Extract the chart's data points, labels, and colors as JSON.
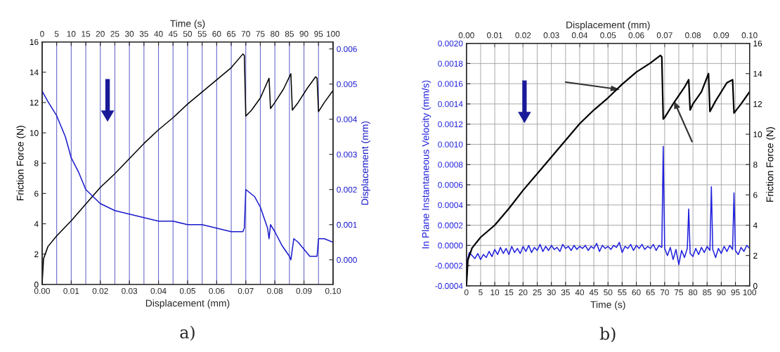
{
  "chart_data": [
    {
      "type": "line",
      "xlabel": "Displacement (mm)",
      "ylabel": "Friction Force (N)",
      "y2label": "Displacement (mm)",
      "x2label": "Time (s)",
      "xlim": [
        0,
        0.1
      ],
      "xticks": [
        {
          "value": 0,
          "label": "0.00"
        },
        {
          "value": 0.01,
          "label": "0.01"
        },
        {
          "value": 0.02,
          "label": "0.02"
        },
        {
          "value": 0.03,
          "label": "0.03"
        },
        {
          "value": 0.04,
          "label": "0.04"
        },
        {
          "value": 0.05,
          "label": "0.05"
        },
        {
          "value": 0.06,
          "label": "0.06"
        },
        {
          "value": 0.07,
          "label": "0.07"
        },
        {
          "value": 0.08,
          "label": "0.08"
        },
        {
          "value": 0.09,
          "label": "0.09"
        },
        {
          "value": 0.1,
          "label": "0.10"
        }
      ],
      "ylim": [
        0,
        16
      ],
      "yticks": [
        0,
        2,
        4,
        6,
        8,
        10,
        12,
        14,
        16
      ],
      "y2lim": [
        -0.0007,
        0.0062
      ],
      "y2ticks": [
        {
          "value": 0,
          "label": "0.000"
        },
        {
          "value": 0.001,
          "label": "0.001"
        },
        {
          "value": 0.002,
          "label": "0.002"
        },
        {
          "value": 0.003,
          "label": "0.003"
        },
        {
          "value": 0.004,
          "label": "0.004"
        },
        {
          "value": 0.005,
          "label": "0.005"
        },
        {
          "value": 0.006,
          "label": "0.006"
        }
      ],
      "x2lim": [
        0,
        100
      ],
      "x2ticks": [
        0,
        5,
        10,
        15,
        20,
        25,
        30,
        35,
        40,
        45,
        50,
        55,
        60,
        65,
        70,
        75,
        80,
        85,
        90,
        95,
        100
      ],
      "grid": "x",
      "annotations": [
        "a)"
      ],
      "series": [
        {
          "color": "#000000",
          "x": [
            0,
            0.0005,
            0.002,
            0.005,
            0.01,
            0.015,
            0.02,
            0.025,
            0.03,
            0.035,
            0.04,
            0.045,
            0.05,
            0.055,
            0.06,
            0.065,
            0.069,
            0.0695,
            0.07,
            0.072,
            0.075,
            0.078,
            0.0785,
            0.08,
            0.083,
            0.0855,
            0.086,
            0.088,
            0.091,
            0.094,
            0.0945,
            0.095,
            0.097,
            0.1
          ],
          "values": [
            0,
            1.7,
            2.5,
            3.2,
            4.2,
            5.3,
            6.4,
            7.3,
            8.3,
            9.3,
            10.2,
            11.0,
            11.9,
            12.7,
            13.5,
            14.3,
            15.2,
            15.1,
            11.1,
            11.5,
            12.3,
            13.6,
            11.6,
            12.0,
            12.9,
            13.9,
            11.5,
            12.0,
            12.9,
            13.7,
            13.6,
            11.4,
            12.0,
            12.8
          ]
        },
        {
          "color": "#1a1acc",
          "axis": "y2",
          "x": [
            0,
            0.002,
            0.005,
            0.008,
            0.01,
            0.0125,
            0.015,
            0.0175,
            0.02,
            0.025,
            0.03,
            0.035,
            0.04,
            0.045,
            0.05,
            0.055,
            0.06,
            0.065,
            0.069,
            0.0695,
            0.07,
            0.0715,
            0.073,
            0.075,
            0.0775,
            0.078,
            0.0785,
            0.08,
            0.0825,
            0.085,
            0.0855,
            0.0865,
            0.088,
            0.09,
            0.092,
            0.0945,
            0.095,
            0.097,
            0.1
          ],
          "values": [
            0.0048,
            0.0045,
            0.0041,
            0.0035,
            0.0029,
            0.0025,
            0.002,
            0.0018,
            0.0016,
            0.0014,
            0.0013,
            0.0012,
            0.0011,
            0.0011,
            0.001,
            0.001,
            0.0009,
            0.0008,
            0.0008,
            0.0009,
            0.002,
            0.0019,
            0.0018,
            0.0015,
            0.0009,
            0.0006,
            0.001,
            0.0008,
            0.0004,
            0.0001,
            0.0,
            0.0006,
            0.0005,
            0.0003,
            0.0001,
            0.0001,
            0.0006,
            0.0006,
            0.0005
          ]
        }
      ]
    },
    {
      "type": "line",
      "xlabel": "Time (s)",
      "ylabel": "In Plane Instantaneous Velocity (mm/s)",
      "y2label": "Friction Force (N)",
      "x2label": "Displacement (mm)",
      "xlim": [
        0,
        100
      ],
      "xticks": [
        0,
        5,
        10,
        15,
        20,
        25,
        30,
        35,
        40,
        45,
        50,
        55,
        60,
        65,
        70,
        75,
        80,
        85,
        90,
        95,
        100
      ],
      "ylim": [
        -0.0004,
        0.002
      ],
      "yticks": [
        {
          "value": -0.0004,
          "label": "-0.0004"
        },
        {
          "value": -0.0002,
          "label": "-0.0002"
        },
        {
          "value": 0,
          "label": "0.0000"
        },
        {
          "value": 0.0002,
          "label": "0.0002"
        },
        {
          "value": 0.0004,
          "label": "0.0004"
        },
        {
          "value": 0.0006,
          "label": "0.0006"
        },
        {
          "value": 0.0008,
          "label": "0.0008"
        },
        {
          "value": 0.001,
          "label": "0.0010"
        },
        {
          "value": 0.0012,
          "label": "0.0012"
        },
        {
          "value": 0.0014,
          "label": "0.0014"
        },
        {
          "value": 0.0016,
          "label": "0.0016"
        },
        {
          "value": 0.0018,
          "label": "0.0018"
        },
        {
          "value": 0.002,
          "label": "0.0020"
        }
      ],
      "y2lim": [
        0,
        16
      ],
      "y2ticks": [
        0,
        2,
        4,
        6,
        8,
        10,
        12,
        14,
        16
      ],
      "x2lim": [
        0,
        0.1
      ],
      "x2ticks": [
        {
          "value": 0,
          "label": "0.00"
        },
        {
          "value": 0.01,
          "label": "0.01"
        },
        {
          "value": 0.02,
          "label": "0.02"
        },
        {
          "value": 0.03,
          "label": "0.03"
        },
        {
          "value": 0.04,
          "label": "0.04"
        },
        {
          "value": 0.05,
          "label": "0.05"
        },
        {
          "value": 0.06,
          "label": "0.06"
        },
        {
          "value": 0.07,
          "label": "0.07"
        },
        {
          "value": 0.08,
          "label": "0.08"
        },
        {
          "value": 0.09,
          "label": "0.09"
        },
        {
          "value": 0.1,
          "label": "0.10"
        }
      ],
      "grid": true,
      "annotations": [
        "b)"
      ],
      "series": [
        {
          "color": "#000000",
          "axis": "y2",
          "x": [
            0,
            0.5,
            2,
            5,
            10,
            15,
            20,
            25,
            30,
            35,
            40,
            45,
            50,
            55,
            60,
            65,
            68.5,
            69,
            69.5,
            70,
            73,
            77,
            78.5,
            79,
            80,
            83,
            85.5,
            86,
            88,
            92,
            94,
            94.5,
            97,
            100
          ],
          "values": [
            0,
            1.7,
            2.5,
            3.2,
            4.0,
            5.1,
            6.3,
            7.4,
            8.5,
            9.6,
            10.7,
            11.6,
            12.4,
            13.3,
            14.1,
            14.7,
            15.2,
            15.1,
            11.0,
            11.1,
            12.0,
            13.1,
            13.6,
            11.6,
            12.0,
            12.8,
            14.0,
            11.5,
            12.2,
            13.4,
            13.6,
            11.4,
            12.0,
            12.8
          ]
        },
        {
          "color": "#2020dd",
          "x": [
            0,
            0.3,
            1,
            2,
            3,
            4,
            5,
            6,
            7,
            8,
            9,
            10,
            11,
            12,
            13,
            14,
            15,
            16,
            17,
            18,
            19,
            20,
            21,
            22,
            23,
            24,
            25,
            26,
            27,
            28,
            29,
            30,
            31,
            32,
            33,
            34,
            35,
            36,
            37,
            38,
            39,
            40,
            41,
            42,
            43,
            44,
            45,
            46,
            47,
            48,
            49,
            50,
            51,
            52,
            53,
            54,
            55,
            56,
            57,
            58,
            59,
            60,
            61,
            62,
            63,
            64,
            65,
            66,
            67,
            68,
            69,
            69.5,
            70,
            71,
            72,
            73,
            74,
            75,
            76,
            77,
            78,
            78.5,
            79,
            80,
            81,
            82,
            83,
            84,
            85,
            86,
            86.5,
            87,
            88,
            89,
            90,
            91,
            92,
            93,
            94,
            94.5,
            95,
            96,
            97,
            98,
            99,
            100
          ],
          "values": [
            -0.0004,
            -0.00015,
            -7e-05,
            -0.0001,
            -0.00013,
            -8e-05,
            -0.00014,
            -9e-05,
            -0.00012,
            -6e-05,
            -0.00011,
            -4e-05,
            -9e-05,
            -2e-05,
            -8e-05,
            -3e-05,
            -9e-05,
            -1e-05,
            -7e-05,
            -3e-05,
            -8e-05,
            -1e-05,
            -6e-05,
            0.0,
            -7e-05,
            -2e-05,
            -5e-05,
            1e-05,
            -6e-05,
            -1e-05,
            -5e-05,
            0.0,
            -4e-05,
            -2e-05,
            -6e-05,
            1e-05,
            -3e-05,
            -1e-05,
            -5e-05,
            0.0,
            -4e-05,
            -1e-05,
            -3e-05,
            0.0,
            -5e-05,
            -1e-05,
            -3e-05,
            2e-05,
            -6e-05,
            0.0,
            -3e-05,
            -1e-05,
            -4e-05,
            0.0,
            -2e-05,
            3e-05,
            -7e-05,
            -1e-05,
            -3e-05,
            1e-05,
            -5e-05,
            0.0,
            -3e-05,
            1e-05,
            -4e-05,
            -1e-05,
            -3e-05,
            1e-05,
            -5e-05,
            0.0,
            -2e-05,
            0.00098,
            -3e-05,
            -0.0001,
            -2e-05,
            -0.00014,
            -4e-05,
            -0.00019,
            -5e-05,
            -0.00012,
            -3e-05,
            0.00036,
            -8e-05,
            -0.00011,
            -3e-05,
            -9e-05,
            -2e-05,
            -7e-05,
            -1e-05,
            -5e-05,
            0.00058,
            -4e-05,
            -0.00012,
            -3e-05,
            -8e-05,
            -1e-05,
            -6e-05,
            0.0,
            -4e-05,
            0.00052,
            -5e-05,
            -9e-05,
            -2e-05,
            -6e-05,
            0.0,
            -3e-05
          ]
        }
      ]
    }
  ]
}
